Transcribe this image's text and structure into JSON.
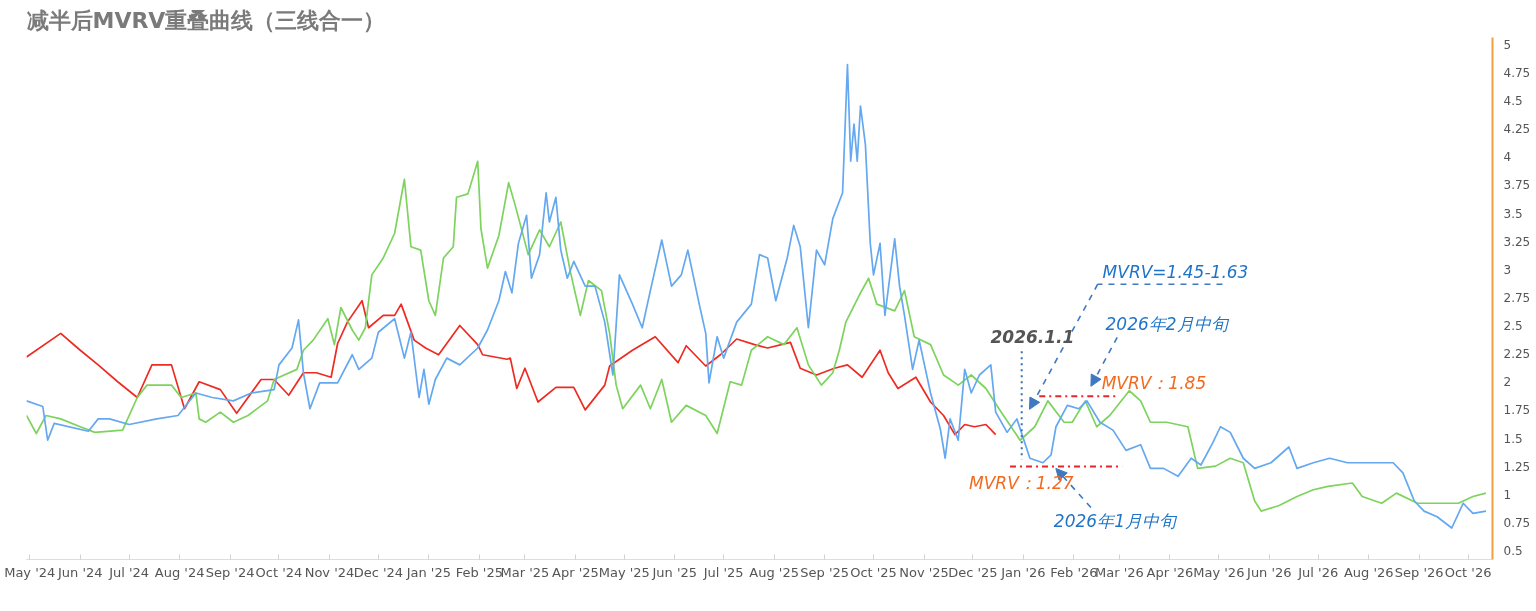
{
  "chart_data": {
    "type": "line",
    "title": "减半后MVRV重叠曲线（三线合一）",
    "xlim": [
      "2024-04-29",
      "2026-10-16"
    ],
    "ylim": [
      0.42,
      5.06
    ],
    "xticks": [
      {
        "value": "2024-05-01",
        "label": "May '24"
      },
      {
        "value": "2024-06-01",
        "label": "Jun '24"
      },
      {
        "value": "2024-07-01",
        "label": "Jul '24"
      },
      {
        "value": "2024-08-01",
        "label": "Aug '24"
      },
      {
        "value": "2024-09-01",
        "label": "Sep '24"
      },
      {
        "value": "2024-10-01",
        "label": "Oct '24"
      },
      {
        "value": "2024-11-01",
        "label": "Nov '24"
      },
      {
        "value": "2024-12-01",
        "label": "Dec '24"
      },
      {
        "value": "2025-01-01",
        "label": "Jan '25"
      },
      {
        "value": "2025-02-01",
        "label": "Feb '25"
      },
      {
        "value": "2025-03-01",
        "label": "Mar '25"
      },
      {
        "value": "2025-04-01",
        "label": "Apr '25"
      },
      {
        "value": "2025-05-01",
        "label": "May '25"
      },
      {
        "value": "2025-06-01",
        "label": "Jun '25"
      },
      {
        "value": "2025-07-01",
        "label": "Jul '25"
      },
      {
        "value": "2025-08-01",
        "label": "Aug '25"
      },
      {
        "value": "2025-09-01",
        "label": "Sep '25"
      },
      {
        "value": "2025-10-01",
        "label": "Oct '25"
      },
      {
        "value": "2025-11-01",
        "label": "Nov '25"
      },
      {
        "value": "2025-12-01",
        "label": "Dec '25"
      },
      {
        "value": "2026-01-01",
        "label": "Jan '26"
      },
      {
        "value": "2026-02-01",
        "label": "Feb '26"
      },
      {
        "value": "2026-03-01",
        "label": "Mar '26"
      },
      {
        "value": "2026-04-01",
        "label": "Apr '26"
      },
      {
        "value": "2026-05-01",
        "label": "May '26"
      },
      {
        "value": "2026-06-01",
        "label": "Jun '26"
      },
      {
        "value": "2026-07-01",
        "label": "Jul '26"
      },
      {
        "value": "2026-08-01",
        "label": "Aug '26"
      },
      {
        "value": "2026-09-01",
        "label": "Sep '26"
      },
      {
        "value": "2026-10-01",
        "label": "Oct '26"
      }
    ],
    "yticks": [
      0.5,
      0.75,
      1,
      1.25,
      1.5,
      1.75,
      2,
      2.25,
      2.5,
      2.75,
      3,
      3.25,
      3.5,
      3.75,
      4,
      4.25,
      4.5,
      4.75,
      5
    ],
    "series": [
      {
        "color": "#ee2b22",
        "x": [
          "2024-04-29",
          "2024-05-20",
          "2024-06-01",
          "2024-06-12",
          "2024-06-24",
          "2024-07-06",
          "2024-07-15",
          "2024-07-27",
          "2024-08-04",
          "2024-08-13",
          "2024-08-26",
          "2024-09-05",
          "2024-09-20",
          "2024-09-28",
          "2024-10-07",
          "2024-10-16",
          "2024-10-24",
          "2024-11-02",
          "2024-11-06",
          "2024-11-12",
          "2024-11-21",
          "2024-11-25",
          "2024-12-04",
          "2024-12-11",
          "2024-12-15",
          "2024-12-23",
          "2024-12-30",
          "2025-01-07",
          "2025-01-20",
          "2025-01-31",
          "2025-02-03",
          "2025-02-18",
          "2025-02-20",
          "2025-02-24",
          "2025-03-01",
          "2025-03-09",
          "2025-03-20",
          "2025-03-31",
          "2025-04-07",
          "2025-04-19",
          "2025-04-22",
          "2025-05-06",
          "2025-05-20",
          "2025-06-03",
          "2025-06-08",
          "2025-06-20",
          "2025-06-29",
          "2025-07-09",
          "2025-07-20",
          "2025-07-28",
          "2025-08-11",
          "2025-08-17",
          "2025-08-27",
          "2025-09-07",
          "2025-09-15",
          "2025-09-24",
          "2025-10-05",
          "2025-10-10",
          "2025-10-16",
          "2025-10-27",
          "2025-11-05",
          "2025-11-13",
          "2025-11-20",
          "2025-11-26",
          "2025-12-02",
          "2025-12-09",
          "2025-12-15"
        ],
        "values": [
          2.22,
          2.43,
          2.28,
          2.15,
          2.0,
          1.86,
          2.15,
          2.15,
          1.76,
          2.0,
          1.93,
          1.72,
          2.02,
          2.02,
          1.88,
          2.08,
          2.08,
          2.04,
          2.34,
          2.53,
          2.72,
          2.48,
          2.59,
          2.59,
          2.69,
          2.37,
          2.3,
          2.24,
          2.5,
          2.33,
          2.24,
          2.2,
          2.21,
          1.94,
          2.12,
          1.82,
          1.95,
          1.95,
          1.75,
          1.97,
          2.14,
          2.28,
          2.4,
          2.17,
          2.32,
          2.14,
          2.24,
          2.38,
          2.33,
          2.3,
          2.35,
          2.12,
          2.06,
          2.12,
          2.15,
          2.04,
          2.28,
          2.08,
          1.94,
          2.04,
          1.82,
          1.7,
          1.53,
          1.62,
          1.6,
          1.62,
          1.53
        ]
      },
      {
        "color": "#7dd35e",
        "x": [
          "2024-04-29",
          "2024-05-05",
          "2024-05-11",
          "2024-05-20",
          "2024-06-01",
          "2024-06-10",
          "2024-06-27",
          "2024-07-06",
          "2024-07-12",
          "2024-07-27",
          "2024-08-02",
          "2024-08-11",
          "2024-08-13",
          "2024-08-17",
          "2024-08-26",
          "2024-09-03",
          "2024-09-12",
          "2024-09-24",
          "2024-09-28",
          "2024-10-12",
          "2024-10-16",
          "2024-10-22",
          "2024-10-31",
          "2024-11-04",
          "2024-11-08",
          "2024-11-15",
          "2024-11-19",
          "2024-11-23",
          "2024-11-27",
          "2024-12-04",
          "2024-12-11",
          "2024-12-17",
          "2024-12-21",
          "2024-12-27",
          "2025-01-01",
          "2025-01-05",
          "2025-01-10",
          "2025-01-16",
          "2025-01-18",
          "2025-01-25",
          "2025-01-31",
          "2025-02-02",
          "2025-02-06",
          "2025-02-13",
          "2025-02-19",
          "2025-02-23",
          "2025-03-03",
          "2025-03-10",
          "2025-03-16",
          "2025-03-23",
          "2025-03-29",
          "2025-04-04",
          "2025-04-09",
          "2025-04-17",
          "2025-04-22",
          "2025-04-26",
          "2025-04-30",
          "2025-05-11",
          "2025-05-17",
          "2025-05-24",
          "2025-05-30",
          "2025-06-08",
          "2025-06-20",
          "2025-06-27",
          "2025-07-05",
          "2025-07-12",
          "2025-07-18",
          "2025-07-28",
          "2025-08-07",
          "2025-08-15",
          "2025-08-22",
          "2025-08-30",
          "2025-09-06",
          "2025-09-10",
          "2025-09-14",
          "2025-09-23",
          "2025-09-28",
          "2025-10-03",
          "2025-10-14",
          "2025-10-20",
          "2025-10-26",
          "2025-11-05",
          "2025-11-13",
          "2025-11-22",
          "2025-11-30",
          "2025-12-09",
          "2025-12-17",
          "2025-12-30",
          "2026-01-08",
          "2026-01-16",
          "2026-01-26",
          "2026-01-31",
          "2026-02-08",
          "2026-02-15",
          "2026-02-23",
          "2026-03-07",
          "2026-03-14",
          "2026-03-20",
          "2026-03-30",
          "2026-04-12",
          "2026-04-18",
          "2026-04-29",
          "2026-05-08",
          "2026-05-16",
          "2026-05-23",
          "2026-05-27",
          "2026-06-07",
          "2026-06-18",
          "2026-06-28",
          "2026-07-07",
          "2026-07-22",
          "2026-07-28",
          "2026-08-09",
          "2026-08-18",
          "2026-08-31",
          "2026-09-12",
          "2026-09-25",
          "2026-10-04",
          "2026-10-12"
        ],
        "values": [
          1.7,
          1.54,
          1.7,
          1.67,
          1.6,
          1.55,
          1.57,
          1.86,
          1.97,
          1.97,
          1.86,
          1.9,
          1.67,
          1.64,
          1.73,
          1.64,
          1.7,
          1.83,
          2.02,
          2.11,
          2.28,
          2.37,
          2.56,
          2.33,
          2.66,
          2.46,
          2.37,
          2.48,
          2.95,
          3.1,
          3.32,
          3.8,
          3.2,
          3.17,
          2.72,
          2.59,
          3.1,
          3.2,
          3.64,
          3.67,
          3.96,
          3.36,
          3.01,
          3.3,
          3.77,
          3.57,
          3.13,
          3.35,
          3.2,
          3.42,
          2.97,
          2.59,
          2.9,
          2.81,
          2.43,
          1.97,
          1.76,
          1.97,
          1.76,
          2.02,
          1.64,
          1.79,
          1.7,
          1.54,
          2.0,
          1.97,
          2.28,
          2.4,
          2.33,
          2.48,
          2.15,
          1.97,
          2.08,
          2.28,
          2.53,
          2.79,
          2.92,
          2.69,
          2.63,
          2.81,
          2.4,
          2.33,
          2.06,
          1.97,
          2.06,
          1.94,
          1.76,
          1.48,
          1.6,
          1.83,
          1.64,
          1.64,
          1.83,
          1.6,
          1.7,
          1.92,
          1.83,
          1.64,
          1.64,
          1.6,
          1.23,
          1.25,
          1.32,
          1.28,
          0.94,
          0.85,
          0.9,
          0.98,
          1.04,
          1.07,
          1.1,
          0.98,
          0.92,
          1.01,
          0.92,
          0.92,
          0.92,
          0.98,
          1.01
        ]
      },
      {
        "color": "#64a8f0",
        "x": [
          "2024-04-29",
          "2024-05-09",
          "2024-05-12",
          "2024-05-16",
          "2024-06-06",
          "2024-06-12",
          "2024-06-19",
          "2024-07-01",
          "2024-07-18",
          "2024-07-31",
          "2024-08-11",
          "2024-08-21",
          "2024-09-03",
          "2024-09-14",
          "2024-09-28",
          "2024-10-01",
          "2024-10-09",
          "2024-10-13",
          "2024-10-16",
          "2024-10-20",
          "2024-10-26",
          "2024-11-06",
          "2024-11-15",
          "2024-11-19",
          "2024-11-27",
          "2024-12-01",
          "2024-12-11",
          "2024-12-17",
          "2024-12-21",
          "2024-12-26",
          "2024-12-29",
          "2025-01-01",
          "2025-01-05",
          "2025-01-12",
          "2025-01-20",
          "2025-01-31",
          "2025-02-06",
          "2025-02-13",
          "2025-02-17",
          "2025-02-21",
          "2025-02-25",
          "2025-03-02",
          "2025-03-05",
          "2025-03-10",
          "2025-03-14",
          "2025-03-16",
          "2025-03-20",
          "2025-03-23",
          "2025-03-27",
          "2025-03-31",
          "2025-04-07",
          "2025-04-13",
          "2025-04-19",
          "2025-04-24",
          "2025-04-28",
          "2025-05-06",
          "2025-05-12",
          "2025-05-17",
          "2025-05-24",
          "2025-05-30",
          "2025-06-05",
          "2025-06-09",
          "2025-06-16",
          "2025-06-20",
          "2025-06-22",
          "2025-06-27",
          "2025-07-01",
          "2025-07-09",
          "2025-07-18",
          "2025-07-23",
          "2025-07-28",
          "2025-08-02",
          "2025-08-09",
          "2025-08-13",
          "2025-08-17",
          "2025-08-22",
          "2025-08-27",
          "2025-09-01",
          "2025-09-06",
          "2025-09-12",
          "2025-09-15",
          "2025-09-17",
          "2025-09-19",
          "2025-09-21",
          "2025-09-23",
          "2025-09-26",
          "2025-09-29",
          "2025-10-01",
          "2025-10-05",
          "2025-10-08",
          "2025-10-14",
          "2025-10-17",
          "2025-10-20",
          "2025-10-25",
          "2025-10-29",
          "2025-11-05",
          "2025-11-11",
          "2025-11-14",
          "2025-11-17",
          "2025-11-22",
          "2025-11-26",
          "2025-11-30",
          "2025-12-05",
          "2025-12-12",
          "2025-12-15",
          "2025-12-22",
          "2025-12-28",
          "2026-01-05",
          "2026-01-13",
          "2026-01-18",
          "2026-01-21",
          "2026-01-28",
          "2026-02-04",
          "2026-02-09",
          "2026-02-17",
          "2026-02-25",
          "2026-03-05",
          "2026-03-14",
          "2026-03-20",
          "2026-03-28",
          "2026-04-06",
          "2026-04-14",
          "2026-04-20",
          "2026-04-27",
          "2026-05-02",
          "2026-05-08",
          "2026-05-16",
          "2026-05-23",
          "2026-06-02",
          "2026-06-13",
          "2026-06-18",
          "2026-06-28",
          "2026-07-08",
          "2026-07-19",
          "2026-08-09",
          "2026-08-16",
          "2026-08-22",
          "2026-08-29",
          "2026-09-04",
          "2026-09-12",
          "2026-09-21",
          "2026-09-28",
          "2026-10-04",
          "2026-10-12"
        ],
        "values": [
          1.83,
          1.78,
          1.48,
          1.63,
          1.56,
          1.67,
          1.67,
          1.62,
          1.67,
          1.7,
          1.9,
          1.86,
          1.83,
          1.9,
          1.93,
          2.15,
          2.3,
          2.55,
          2.08,
          1.76,
          1.99,
          1.99,
          2.24,
          2.11,
          2.21,
          2.44,
          2.56,
          2.21,
          2.44,
          1.86,
          2.11,
          1.8,
          2.02,
          2.21,
          2.15,
          2.3,
          2.46,
          2.72,
          2.98,
          2.79,
          3.23,
          3.48,
          2.92,
          3.13,
          3.68,
          3.42,
          3.64,
          3.17,
          2.92,
          3.07,
          2.85,
          2.85,
          2.53,
          2.06,
          2.95,
          2.69,
          2.48,
          2.81,
          3.26,
          2.85,
          2.95,
          3.17,
          2.69,
          2.43,
          1.99,
          2.4,
          2.21,
          2.53,
          2.69,
          3.13,
          3.1,
          2.72,
          3.1,
          3.39,
          3.2,
          2.48,
          3.17,
          3.04,
          3.45,
          3.68,
          4.82,
          3.96,
          4.29,
          3.96,
          4.45,
          4.11,
          3.23,
          2.95,
          3.23,
          2.59,
          3.27,
          2.85,
          2.59,
          2.11,
          2.37,
          1.9,
          1.58,
          1.32,
          1.67,
          1.48,
          2.11,
          1.9,
          2.06,
          2.15,
          1.73,
          1.55,
          1.67,
          1.32,
          1.28,
          1.35,
          1.6,
          1.79,
          1.76,
          1.83,
          1.64,
          1.57,
          1.39,
          1.44,
          1.23,
          1.23,
          1.16,
          1.32,
          1.26,
          1.45,
          1.6,
          1.55,
          1.32,
          1.23,
          1.28,
          1.42,
          1.23,
          1.28,
          1.32,
          1.28,
          1.28,
          1.28,
          1.19,
          0.94,
          0.85,
          0.8,
          0.7,
          0.92,
          0.83,
          0.85
        ]
      }
    ],
    "annotations": [
      "MVRV=1.45-1.63",
      "2026年2月中旬",
      "2026年1月中旬",
      "MVRV：1.85",
      "MVRV：1.27",
      "2026.1.1"
    ]
  }
}
